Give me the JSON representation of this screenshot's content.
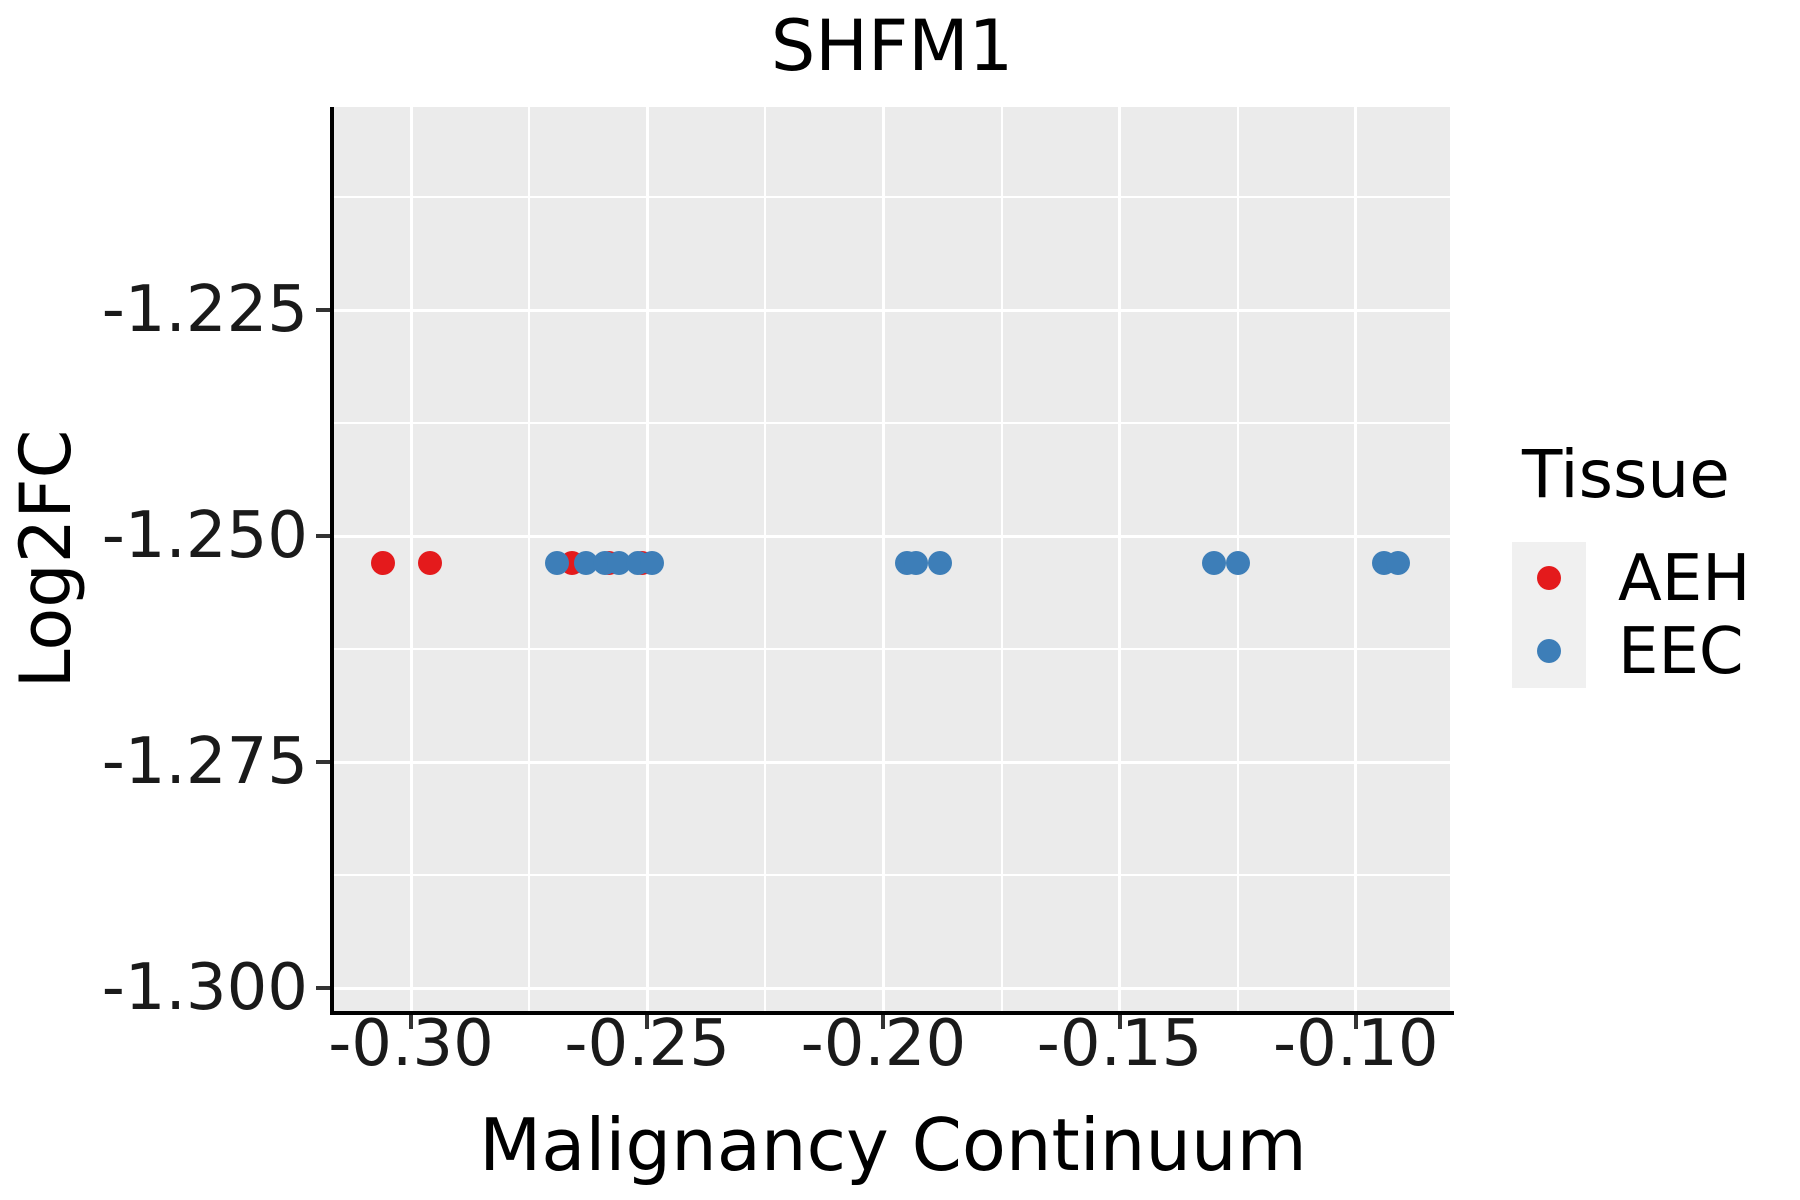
{
  "title": "SHFM1",
  "axes": {
    "x": {
      "label": "Malignancy Continuum",
      "tick_labels": [
        "-0.30",
        "-0.25",
        "-0.20",
        "-0.15",
        "-0.10"
      ]
    },
    "y": {
      "label": "Log2FC",
      "tick_labels": [
        "-1.225",
        "-1.250",
        "-1.275",
        "-1.300"
      ]
    }
  },
  "legend": {
    "title": "Tissue",
    "items": [
      {
        "label": "AEH",
        "color": "#E41A1C"
      },
      {
        "label": "EEC",
        "color": "#3D7EB8"
      }
    ]
  },
  "colors": {
    "panel_background": "#EBEBEB",
    "grid": "#FFFFFF",
    "axis_line": "#000000",
    "aeh_red": "#E41A1C",
    "eec_blue": "#3D7EB8",
    "legend_key_background": "#F0F0F0"
  },
  "chart_data": {
    "type": "scatter",
    "title": "SHFM1",
    "xlabel": "Malignancy Continuum",
    "ylabel": "Log2FC",
    "xlim": [
      -0.3163,
      -0.0807
    ],
    "ylim": [
      -1.3025,
      -1.2025
    ],
    "x_ticks": [
      -0.3,
      -0.25,
      -0.2,
      -0.15,
      -0.1
    ],
    "y_ticks": [
      -1.225,
      -1.25,
      -1.275,
      -1.3
    ],
    "grid": true,
    "legend_title": "Tissue",
    "legend_position": "right",
    "series": [
      {
        "name": "AEH",
        "color": "#E41A1C",
        "points": [
          [
            -0.306,
            -1.253
          ],
          [
            -0.296,
            -1.253
          ],
          [
            -0.266,
            -1.253
          ],
          [
            -0.258,
            -1.253
          ],
          [
            -0.251,
            -1.253
          ]
        ]
      },
      {
        "name": "EEC",
        "color": "#3D7EB8",
        "points": [
          [
            -0.269,
            -1.253
          ],
          [
            -0.263,
            -1.253
          ],
          [
            -0.259,
            -1.253
          ],
          [
            -0.256,
            -1.253
          ],
          [
            -0.252,
            -1.253
          ],
          [
            -0.249,
            -1.253
          ],
          [
            -0.195,
            -1.253
          ],
          [
            -0.193,
            -1.253
          ],
          [
            -0.188,
            -1.253
          ],
          [
            -0.13,
            -1.253
          ],
          [
            -0.125,
            -1.253
          ],
          [
            -0.094,
            -1.253
          ],
          [
            -0.091,
            -1.253
          ]
        ]
      }
    ]
  }
}
